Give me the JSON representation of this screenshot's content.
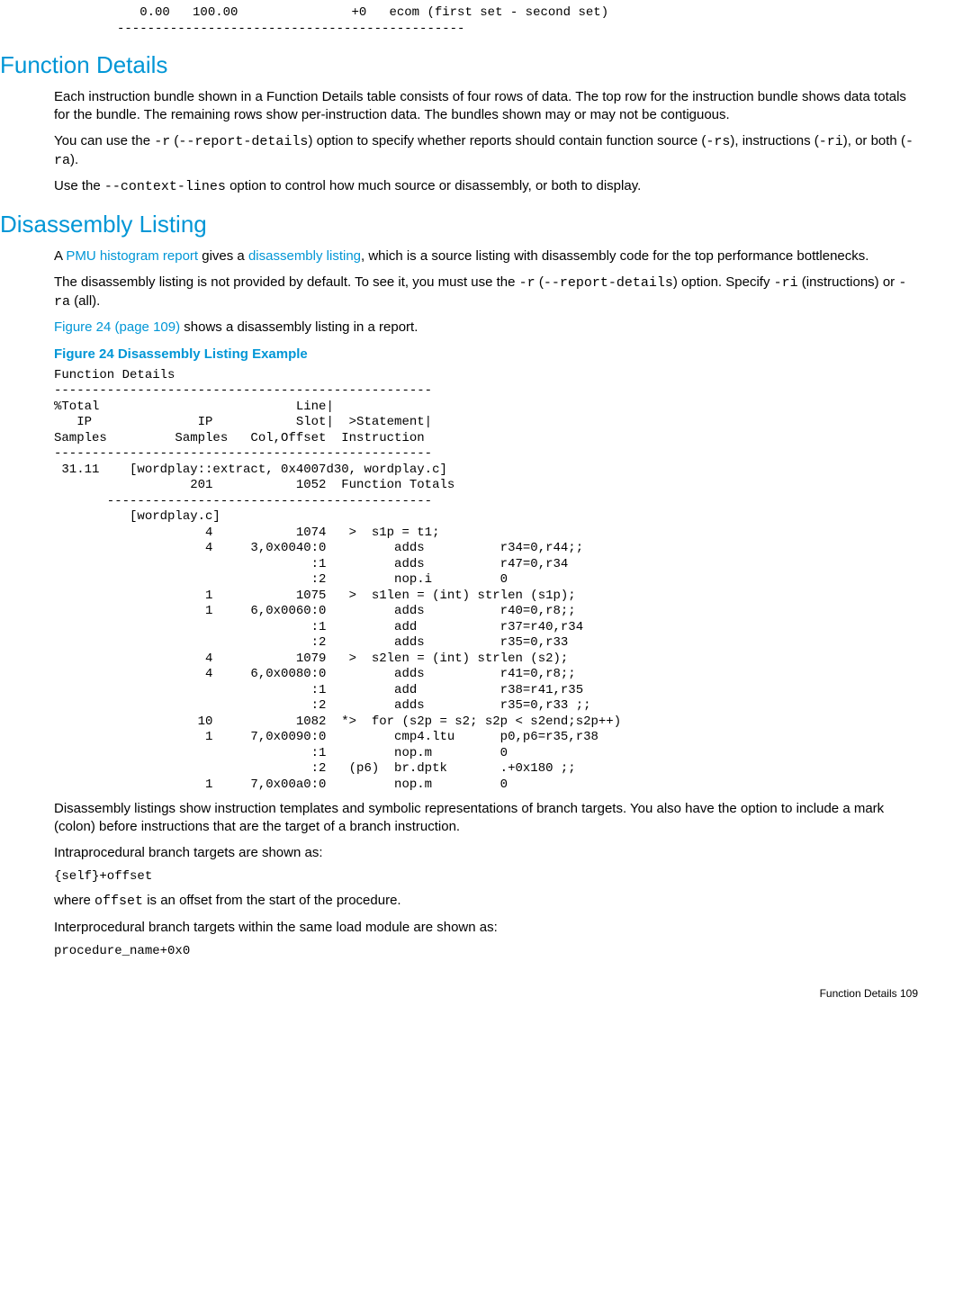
{
  "top_block": "   0.00   100.00               +0   ecom (first set - second set)\n----------------------------------------------",
  "sec1": {
    "title": "Function Details",
    "p1": "Each instruction bundle shown in a Function Details table consists of four rows of data. The top row for the instruction bundle shows data totals for the bundle. The remaining rows show per-instruction data. The bundles shown may or may not be contiguous.",
    "p2_a": "You can use the ",
    "p2_code1": "-r",
    "p2_b": " (",
    "p2_code2": "--report-details",
    "p2_c": ") option to specify whether reports should contain function source (",
    "p2_code3": "-rs",
    "p2_d": "), instructions (",
    "p2_code4": "-ri",
    "p2_e": "), or both (",
    "p2_code5": "-ra",
    "p2_f": ").",
    "p3_a": "Use the ",
    "p3_code1": "--context-lines",
    "p3_b": " option to control how much source or disassembly, or both to display."
  },
  "sec2": {
    "title": "Disassembly Listing",
    "p1_a": "A ",
    "p1_link1": "PMU histogram report",
    "p1_b": " gives a ",
    "p1_link2": "disassembly listing",
    "p1_c": ", which is a source listing with disassembly code for the top performance bottlenecks.",
    "p2_a": "The disassembly listing is not provided by default. To see it, you must use the ",
    "p2_code1": "-r",
    "p2_b": " (",
    "p2_code2": "--report-details",
    "p2_c": ") option. Specify ",
    "p2_code3": "-ri",
    "p2_d": " (instructions) or ",
    "p2_code4": "-ra",
    "p2_e": " (all).",
    "p3_link": "Figure 24 (page 109)",
    "p3_rest": " shows a disassembly listing in a report.",
    "fig_caption": "Figure 24 Disassembly Listing Example"
  },
  "listing": "Function Details\n--------------------------------------------------\n%Total                          Line|\n   IP              IP           Slot|  >Statement|\nSamples         Samples   Col,Offset  Instruction\n--------------------------------------------------\n 31.11    [wordplay::extract, 0x4007d30, wordplay.c]\n                  201           1052  Function Totals\n       -------------------------------------------\n          [wordplay.c]\n                    4           1074   >  s1p = t1;\n                    4     3,0x0040:0         adds          r34=0,r44;;\n                                  :1         adds          r47=0,r34\n                                  :2         nop.i         0\n                    1           1075   >  s1len = (int) strlen (s1p);\n                    1     6,0x0060:0         adds          r40=0,r8;;\n                                  :1         add           r37=r40,r34\n                                  :2         adds          r35=0,r33\n                    4           1079   >  s2len = (int) strlen (s2);\n                    4     6,0x0080:0         adds          r41=0,r8;;\n                                  :1         add           r38=r41,r35\n                                  :2         adds          r35=0,r33 ;;\n                   10           1082  *>  for (s2p = s2; s2p < s2end;s2p++)\n                    1     7,0x0090:0         cmp4.ltu      p0,p6=r35,r38\n                                  :1         nop.m         0\n                                  :2   (p6)  br.dptk       .+0x180 ;;\n                    1     7,0x00a0:0         nop.m         0",
  "after": {
    "p1": "Disassembly listings show instruction templates and symbolic representations of branch targets. You also have the option to include a mark (colon) before instructions that are the target of a branch instruction.",
    "p2": "Intraprocedural branch targets are shown as:",
    "code1": "{self}+offset",
    "p3_a": "where ",
    "p3_code": "offset",
    "p3_b": " is an offset from the start of the procedure.",
    "p4": "Interprocedural branch targets within the same load module are shown as:",
    "code2": "procedure_name+0x0"
  },
  "footer": "Function Details   109"
}
